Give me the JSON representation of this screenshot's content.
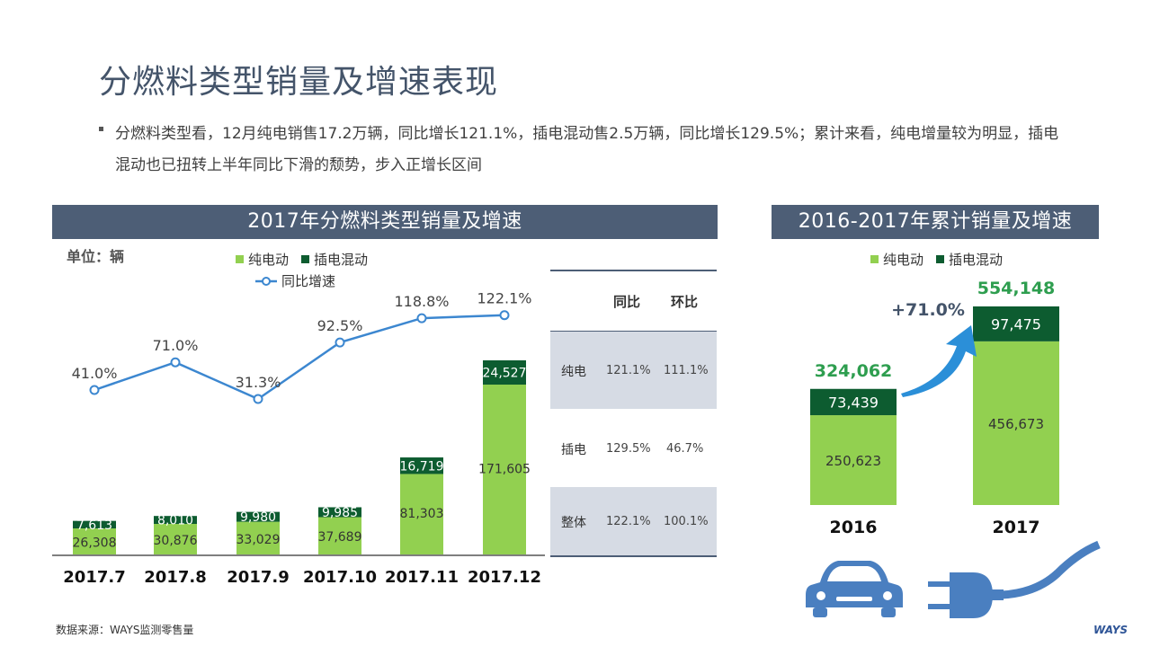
{
  "page": {
    "title": "分燃料类型销量及增速表现",
    "bullet": "分燃料类型看，12月纯电销售17.2万辆，同比增长121.1%，插电混动售2.5万辆，同比增长129.5%；累计来看，纯电增量较为明显，插电混动也已扭转上半年同比下滑的颓势，步入正增长区间",
    "source": "数据来源：WAYS监测零售量",
    "logo": "WAYS"
  },
  "colors": {
    "bev": "#92d050",
    "phev": "#0d5c30",
    "line": "#3c87d0",
    "header_bg": "#4d5e76",
    "table_shade": "#d6dbe4",
    "highlight_green": "#2e9e4f",
    "arrow": "#2b8fd8",
    "icon": "#4a7fc0"
  },
  "icons": [
    "car-icon",
    "plug-icon",
    "growth-arrow-icon"
  ],
  "chart_data": [
    {
      "type": "bar",
      "title": "2017年分燃料类型销量及增速",
      "unit_label": "单位：辆",
      "stacked": true,
      "categories": [
        "2017.7",
        "2017.8",
        "2017.9",
        "2017.10",
        "2017.11",
        "2017.12"
      ],
      "series": [
        {
          "name": "纯电动",
          "values": [
            26308,
            30876,
            33029,
            37689,
            81303,
            171605
          ],
          "labels": [
            "26,308",
            "30,876",
            "33,029",
            "37,689",
            "81,303",
            "171,605"
          ]
        },
        {
          "name": "插电混动",
          "values": [
            7613,
            8010,
            9980,
            9985,
            16719,
            24527
          ],
          "labels": [
            "7,613",
            "8,010",
            "9,980",
            "9,985",
            "16,719",
            "24,527"
          ]
        }
      ],
      "line_series": {
        "name": "同比增速",
        "values": [
          41.0,
          71.0,
          31.3,
          92.5,
          118.8,
          122.1
        ],
        "labels": [
          "41.0%",
          "71.0%",
          "31.3%",
          "92.5%",
          "118.8%",
          "122.1%"
        ]
      },
      "legend_position": "top",
      "grid": false
    },
    {
      "type": "table",
      "columns": [
        "",
        "同比",
        "环比"
      ],
      "rows": [
        {
          "label": "纯电",
          "yoy": "121.1%",
          "mom": "111.1%"
        },
        {
          "label": "插电",
          "yoy": "129.5%",
          "mom": "46.7%"
        },
        {
          "label": "整体",
          "yoy": "122.1%",
          "mom": "100.1%"
        }
      ]
    },
    {
      "type": "bar",
      "title": "2016-2017年累计销量及增速",
      "stacked": true,
      "categories": [
        "2016",
        "2017"
      ],
      "series": [
        {
          "name": "纯电动",
          "values": [
            250623,
            456673
          ],
          "labels": [
            "250,623",
            "456,673"
          ]
        },
        {
          "name": "插电混动",
          "values": [
            73439,
            97475
          ],
          "labels": [
            "73,439",
            "97,475"
          ]
        }
      ],
      "totals": [
        "324,062",
        "554,148"
      ],
      "growth_label": "+71.0%",
      "legend_position": "top",
      "grid": false
    }
  ]
}
